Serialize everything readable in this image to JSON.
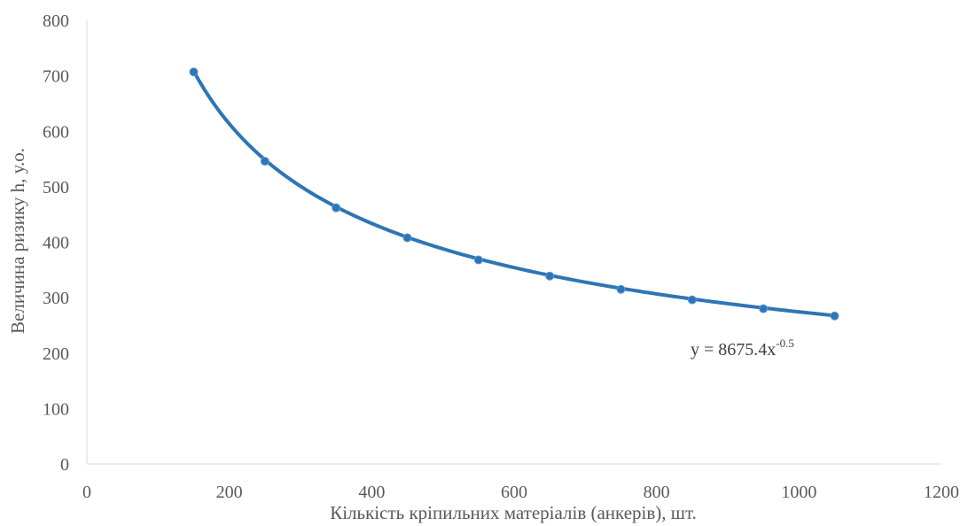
{
  "chart_data": {
    "type": "scatter",
    "title": "",
    "xlabel": "Кількість кріпильних матеріалів (анкерів), шт.",
    "ylabel": "Величина ризику h, у.о.",
    "xlim": [
      0,
      1200
    ],
    "ylim": [
      0,
      800
    ],
    "x_ticks": [
      "0",
      "200",
      "400",
      "600",
      "800",
      "1000",
      "1200"
    ],
    "y_ticks": [
      "0",
      "100",
      "200",
      "300",
      "400",
      "500",
      "600",
      "700",
      "800"
    ],
    "grid": false,
    "legend": "none",
    "series": [
      {
        "x": [
          150,
          250,
          350,
          450,
          550,
          650,
          750,
          850,
          950,
          1050
        ],
        "y": [
          707,
          546,
          462,
          408,
          368,
          339,
          315,
          296,
          280,
          267
        ],
        "color": "#2E75B6"
      }
    ],
    "trendline": {
      "type": "power",
      "coefficient": 8675.4,
      "exponent": -0.5,
      "x_range": [
        150,
        1050
      ],
      "color": "#2E75B6",
      "label_base": "y = 8675.4x",
      "label_exponent": "-0.5"
    }
  }
}
